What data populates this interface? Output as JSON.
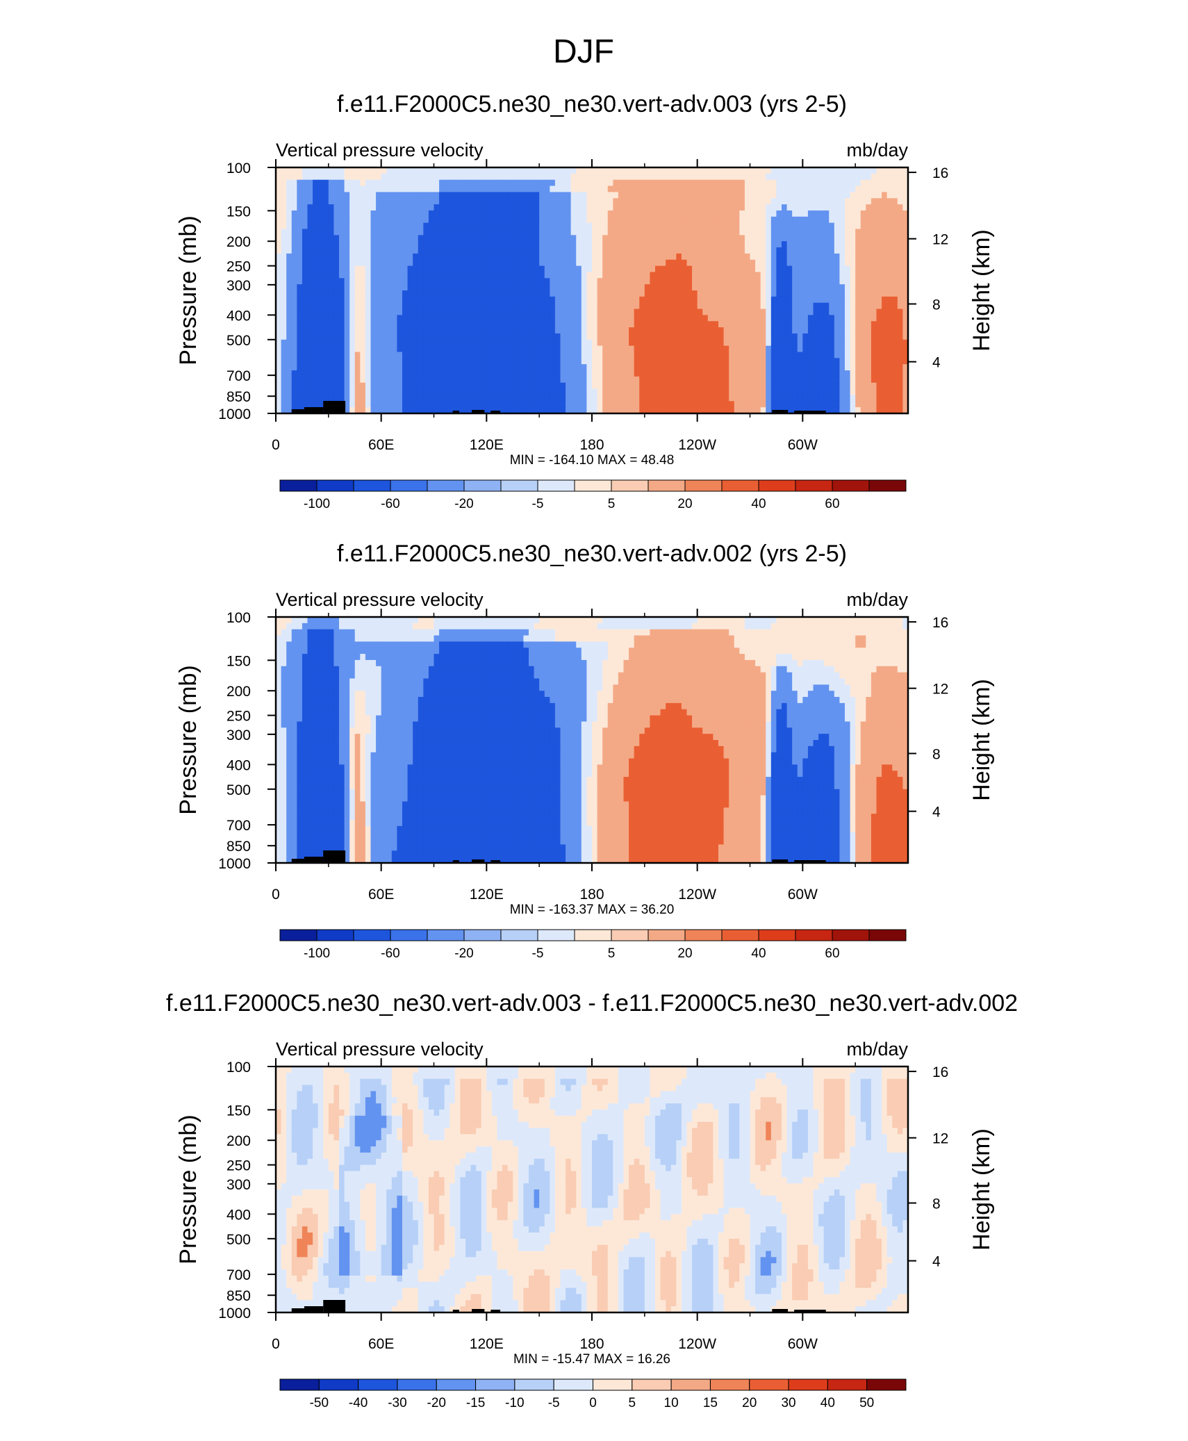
{
  "figure": {
    "title": "DJF"
  },
  "chart_data": [
    {
      "type": "heatmap",
      "title": "f.e11.F2000C5.ne30_ne30.vert-adv.003 (yrs 2-5)",
      "left_string": "Vertical pressure velocity",
      "right_string": "mb/day",
      "ylabel": "Pressure (mb)",
      "ylabel_right": "Height (km)",
      "xticks": [
        "0",
        "60E",
        "120E",
        "180",
        "120W",
        "60W"
      ],
      "yticks": [
        "100",
        "150",
        "200",
        "250",
        "300",
        "400",
        "500",
        "700",
        "850",
        "1000"
      ],
      "yticks_right": [
        "16",
        "12",
        "8",
        "4"
      ],
      "stats": "MIN = -164.10  MAX =  48.48",
      "min": -164.1,
      "max": 48.48,
      "colorbar_labels": [
        "-100",
        "-60",
        "-20",
        "-5",
        "5",
        "20",
        "40",
        "60"
      ],
      "colorbar_colors": [
        "#0a1f9b",
        "#0f3bc6",
        "#1d55dd",
        "#3a72ea",
        "#6393f0",
        "#8eb2f3",
        "#b7d0f7",
        "#dde9fb",
        "#fde8d8",
        "#f9ccb3",
        "#f4a986",
        "#ef8458",
        "#e95f33",
        "#de3d1c",
        "#c72612",
        "#a1140b",
        "#7a0707"
      ],
      "heat_colors": [
        "#0a1f9b",
        "#1d55dd",
        "#6393f0",
        "#dde9fb",
        "#fde8d8",
        "#f4a986",
        "#e95f33",
        "#a1140b"
      ]
    },
    {
      "type": "heatmap",
      "title": "f.e11.F2000C5.ne30_ne30.vert-adv.002 (yrs 2-5)",
      "left_string": "Vertical pressure velocity",
      "right_string": "mb/day",
      "ylabel": "Pressure (mb)",
      "ylabel_right": "Height (km)",
      "xticks": [
        "0",
        "60E",
        "120E",
        "180",
        "120W",
        "60W"
      ],
      "yticks": [
        "100",
        "150",
        "200",
        "250",
        "300",
        "400",
        "500",
        "700",
        "850",
        "1000"
      ],
      "yticks_right": [
        "16",
        "12",
        "8",
        "4"
      ],
      "stats": "MIN = -163.37  MAX =  36.20",
      "min": -163.37,
      "max": 36.2,
      "colorbar_labels": [
        "-100",
        "-60",
        "-20",
        "-5",
        "5",
        "20",
        "40",
        "60"
      ],
      "colorbar_colors": [
        "#0a1f9b",
        "#0f3bc6",
        "#1d55dd",
        "#3a72ea",
        "#6393f0",
        "#8eb2f3",
        "#b7d0f7",
        "#dde9fb",
        "#fde8d8",
        "#f9ccb3",
        "#f4a986",
        "#ef8458",
        "#e95f33",
        "#de3d1c",
        "#c72612",
        "#a1140b",
        "#7a0707"
      ],
      "heat_colors": [
        "#0a1f9b",
        "#1d55dd",
        "#6393f0",
        "#dde9fb",
        "#fde8d8",
        "#f4a986",
        "#e95f33",
        "#a1140b"
      ]
    },
    {
      "type": "heatmap",
      "title": "f.e11.F2000C5.ne30_ne30.vert-adv.003 - f.e11.F2000C5.ne30_ne30.vert-adv.002",
      "left_string": "Vertical pressure velocity",
      "right_string": "mb/day",
      "ylabel": "Pressure (mb)",
      "ylabel_right": "Height (km)",
      "xticks": [
        "0",
        "60E",
        "120E",
        "180",
        "120W",
        "60W"
      ],
      "yticks": [
        "100",
        "150",
        "200",
        "250",
        "300",
        "400",
        "500",
        "700",
        "850",
        "1000"
      ],
      "yticks_right": [
        "16",
        "12",
        "8",
        "4"
      ],
      "stats": "MIN = -15.47  MAX =  16.26",
      "min": -15.47,
      "max": 16.26,
      "colorbar_labels": [
        "-50",
        "-40",
        "-30",
        "-20",
        "-15",
        "-10",
        "-5",
        "0",
        "5",
        "10",
        "15",
        "20",
        "30",
        "40",
        "50"
      ],
      "colorbar_colors": [
        "#0a1f9b",
        "#0f3bc6",
        "#1d55dd",
        "#3a72ea",
        "#6393f0",
        "#8eb2f3",
        "#b7d0f7",
        "#dde9fb",
        "#fde8d8",
        "#f9ccb3",
        "#f4a986",
        "#ef8458",
        "#e95f33",
        "#de3d1c",
        "#c72612",
        "#7a0707"
      ],
      "heat_colors": [
        "#6393f0",
        "#b7d0f7",
        "#dde9fb",
        "#fde8d8",
        "#f9ccb3",
        "#ef8458"
      ]
    }
  ]
}
